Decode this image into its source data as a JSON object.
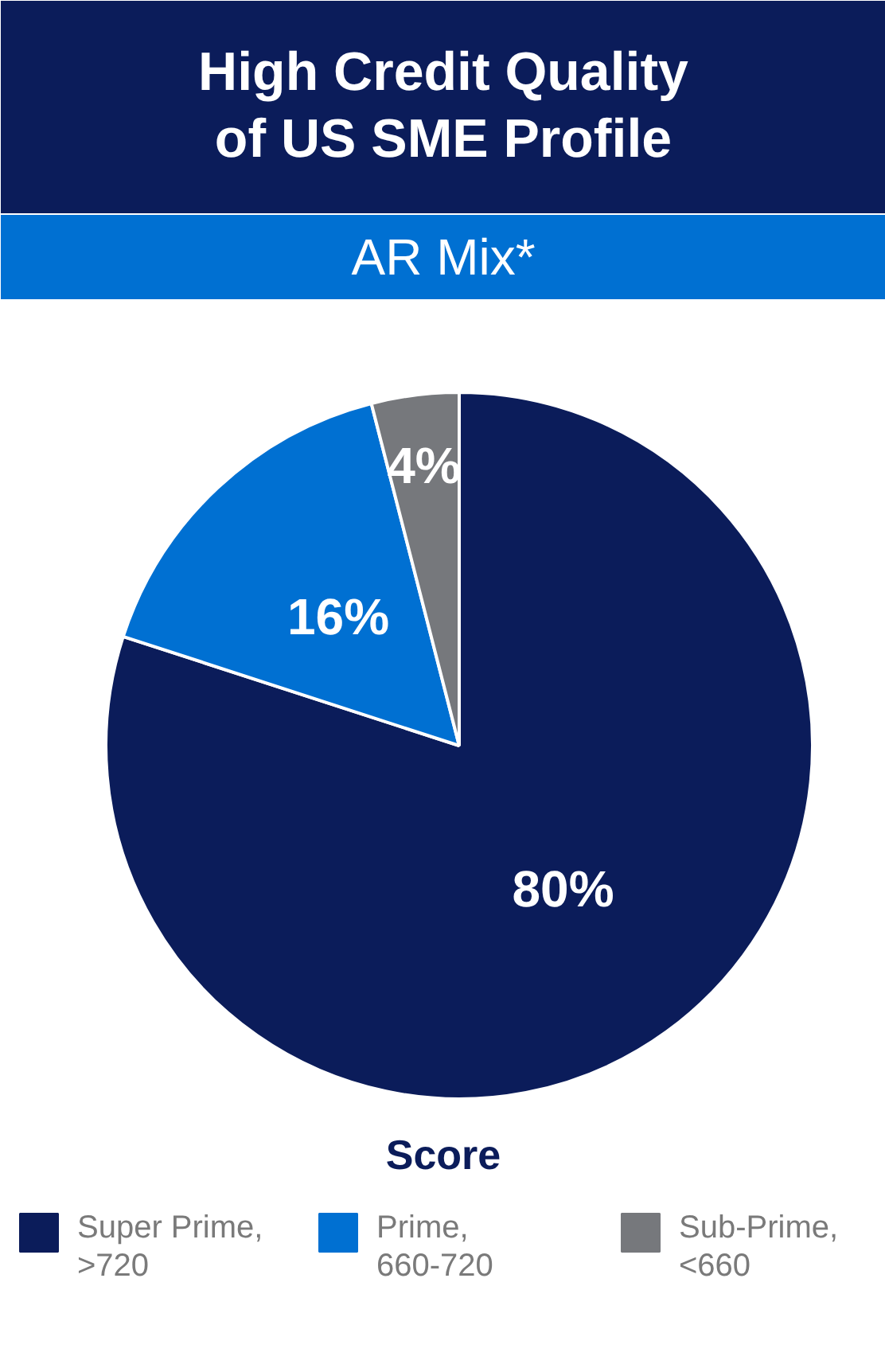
{
  "chart_data": {
    "type": "pie",
    "title": "High Credit Quality\nof US SME Profile",
    "subtitle": "AR Mix*",
    "legend_title": "Score",
    "categories": [
      "Super Prime,\n>720",
      "Prime,\n660-720",
      "Sub-Prime,\n<660"
    ],
    "values": [
      80,
      16,
      4
    ],
    "colors": [
      "#0b1c5a",
      "#0070d2",
      "#76787c"
    ],
    "value_labels": [
      "80%",
      "16%",
      "4%"
    ],
    "legend": "bottom"
  }
}
